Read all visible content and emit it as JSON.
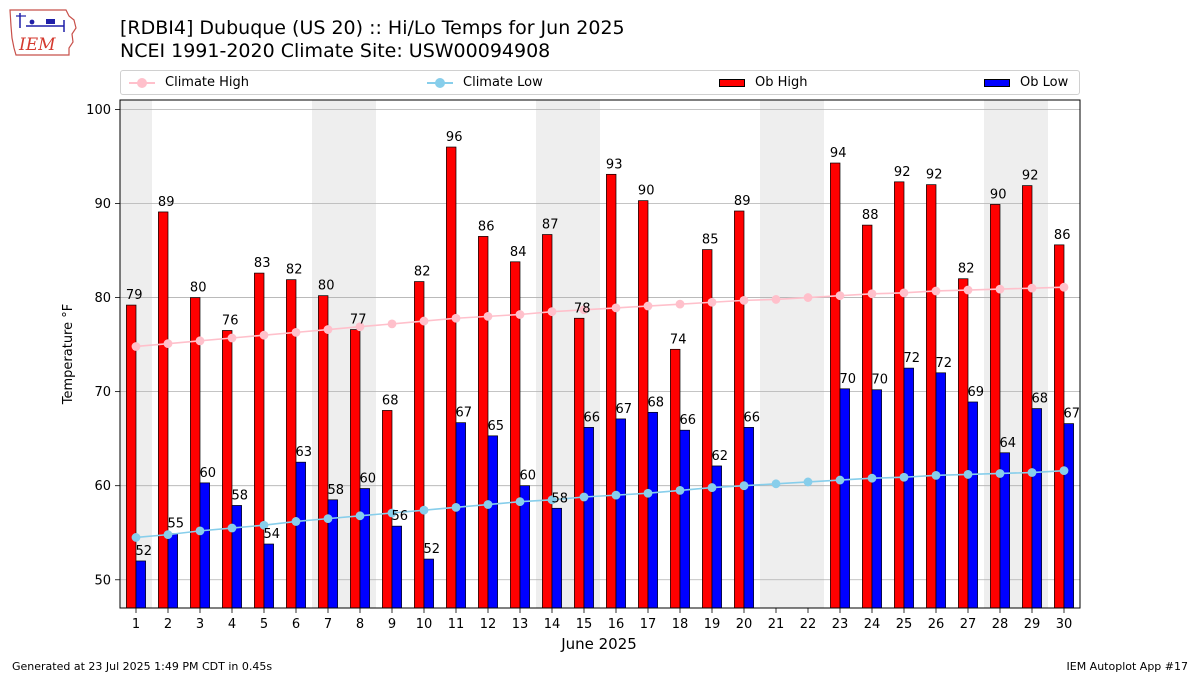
{
  "logo": {
    "text": "IEM",
    "icon": "iowa-state-outline-with-weather-station"
  },
  "title": {
    "line1": "[RDBI4] Dubuque (US 20) :: Hi/Lo Temps for Jun 2025",
    "line2": "NCEI 1991-2020 Climate Site: USW00094908"
  },
  "legend": [
    {
      "label": "Climate High",
      "kind": "line",
      "color": "#ffc0cb"
    },
    {
      "label": "Climate Low",
      "kind": "line",
      "color": "#87ceeb"
    },
    {
      "label": "Ob High",
      "kind": "bar",
      "color": "#ff0000"
    },
    {
      "label": "Ob Low",
      "kind": "bar",
      "color": "#0000ff"
    }
  ],
  "footer": {
    "left": "Generated at 23 Jul 2025 1:49 PM CDT in 0.45s",
    "right": "IEM Autoplot App #17"
  },
  "chart_data": {
    "type": "bar",
    "xlabel": "June 2025",
    "ylabel": "Temperature °F",
    "ylim": [
      47,
      101
    ],
    "yticks": [
      50,
      60,
      70,
      80,
      90,
      100
    ],
    "grid": "y",
    "legend_position": "top",
    "categories": [
      "1",
      "2",
      "3",
      "4",
      "5",
      "6",
      "7",
      "8",
      "9",
      "10",
      "11",
      "12",
      "13",
      "14",
      "15",
      "16",
      "17",
      "18",
      "19",
      "20",
      "21",
      "22",
      "23",
      "24",
      "25",
      "26",
      "27",
      "28",
      "29",
      "30"
    ],
    "weekend_shading": [
      [
        1,
        1
      ],
      [
        7,
        8
      ],
      [
        14,
        15
      ],
      [
        21,
        22
      ],
      [
        28,
        29
      ]
    ],
    "shading_color": "#eeeeee",
    "series": [
      {
        "name": "Ob High",
        "type": "bar",
        "color": "#ff0000",
        "values": [
          79.2,
          89.1,
          80.0,
          76.5,
          82.6,
          81.9,
          80.2,
          76.6,
          68.0,
          81.7,
          96.0,
          86.5,
          83.8,
          86.7,
          77.8,
          93.1,
          90.3,
          74.5,
          85.1,
          89.2,
          null,
          null,
          94.3,
          87.7,
          92.3,
          92.0,
          82.0,
          89.9,
          91.9,
          85.6
        ],
        "labels": [
          "79",
          "89",
          "80",
          "76",
          "83",
          "82",
          "80",
          "77",
          "68",
          "82",
          "96",
          "86",
          "84",
          "87",
          "78",
          "93",
          "90",
          "74",
          "85",
          "89",
          null,
          null,
          "94",
          "88",
          "92",
          "92",
          "82",
          "90",
          "92",
          "86"
        ]
      },
      {
        "name": "Ob Low",
        "type": "bar",
        "color": "#0000ff",
        "values": [
          52.0,
          54.9,
          60.3,
          57.9,
          53.8,
          62.5,
          58.5,
          59.7,
          55.7,
          52.2,
          66.7,
          65.3,
          60.0,
          57.6,
          66.2,
          67.1,
          67.8,
          65.9,
          62.1,
          66.2,
          null,
          null,
          70.3,
          70.2,
          72.5,
          72.0,
          68.9,
          63.5,
          68.2,
          66.6
        ],
        "labels": [
          "52",
          "55",
          "60",
          "58",
          "54",
          "63",
          "58",
          "60",
          "56",
          "52",
          "67",
          "65",
          "60",
          "58",
          "66",
          "67",
          "68",
          "66",
          "62",
          "66",
          null,
          null,
          "70",
          "70",
          "72",
          "72",
          "69",
          "64",
          "68",
          "67"
        ]
      },
      {
        "name": "Climate High",
        "type": "line",
        "color": "#ffc0cb",
        "values": [
          74.8,
          75.1,
          75.4,
          75.7,
          76.0,
          76.3,
          76.6,
          76.9,
          77.2,
          77.5,
          77.8,
          78.0,
          78.2,
          78.5,
          78.7,
          78.9,
          79.1,
          79.3,
          79.5,
          79.7,
          79.8,
          80.0,
          80.2,
          80.4,
          80.5,
          80.7,
          80.8,
          80.9,
          81.0,
          81.1
        ]
      },
      {
        "name": "Climate Low",
        "type": "line",
        "color": "#87ceeb",
        "values": [
          54.5,
          54.8,
          55.2,
          55.5,
          55.8,
          56.2,
          56.5,
          56.8,
          57.1,
          57.4,
          57.7,
          58.0,
          58.3,
          58.5,
          58.8,
          59.0,
          59.2,
          59.5,
          59.8,
          60.0,
          60.2,
          60.4,
          60.6,
          60.8,
          60.9,
          61.1,
          61.2,
          61.3,
          61.4,
          61.6
        ]
      }
    ]
  }
}
